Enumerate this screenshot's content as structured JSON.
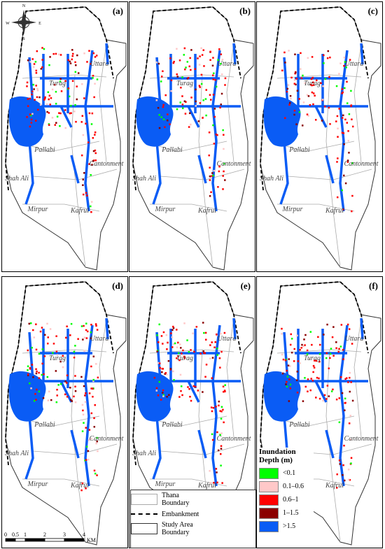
{
  "panels": [
    {
      "label": "(a)"
    },
    {
      "label": "(b)"
    },
    {
      "label": "(c)"
    },
    {
      "label": "(d)"
    },
    {
      "label": "(e)"
    },
    {
      "label": "(f)"
    }
  ],
  "places": [
    "Uttara",
    "Turag",
    "Pallabi",
    "Cantonment",
    "Shah Ali",
    "Mirpur",
    "Kafrul"
  ],
  "compass": {
    "n": "N",
    "s": "S",
    "e": "E",
    "w": "W"
  },
  "depth_legend": {
    "title": "Inundation Depth (m)",
    "items": [
      {
        "label": "<0.1",
        "color": "#00ff00"
      },
      {
        "label": "0.1–0.6",
        "color": "#ffc8c8"
      },
      {
        "label": "0.6–1",
        "color": "#ff0000"
      },
      {
        "label": "1–1.5",
        "color": "#8b0000"
      },
      {
        "label": ">1.5",
        "color": "#0a5cf5"
      }
    ]
  },
  "boundary_legend": {
    "thana": "Thana Boundary",
    "embankment": "Embankment",
    "study_area": "Study Area Boundary"
  },
  "scale_bar": {
    "labels": [
      "0",
      "0.5",
      "1",
      "2",
      "3",
      "4"
    ],
    "unit": "KM"
  }
}
